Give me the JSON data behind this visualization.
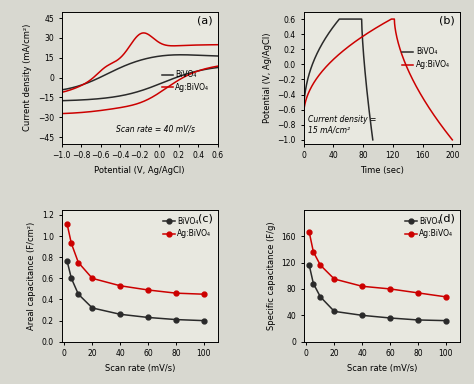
{
  "panel_a": {
    "title": "(a)",
    "xlabel": "Potential (V, Ag/AgCl)",
    "ylabel": "Current density (mA/cm²)",
    "annotation": "Scan rate = 40 mV/s",
    "xlim": [
      -1.0,
      0.6
    ],
    "ylim": [
      -50,
      50
    ],
    "yticks": [
      -45,
      -30,
      -15,
      0,
      15,
      30,
      45
    ],
    "xticks": [
      -1.0,
      -0.8,
      -0.6,
      -0.4,
      -0.2,
      0.0,
      0.2,
      0.4,
      0.6
    ],
    "bivo4_color": "#2a2a2a",
    "ag_bivo4_color": "#cc0000",
    "bg_color": "#e8e8e0"
  },
  "panel_b": {
    "title": "(b)",
    "xlabel": "Time (sec)",
    "ylabel": "Potential (V, Ag/AgCl)",
    "annotation": "Current density =\n15 mA/cm²",
    "xlim": [
      0,
      210
    ],
    "ylim": [
      -1.05,
      0.7
    ],
    "yticks": [
      -1.0,
      -0.8,
      -0.6,
      -0.4,
      -0.2,
      0.0,
      0.2,
      0.4,
      0.6
    ],
    "xticks": [
      0,
      40,
      80,
      120,
      160,
      200
    ],
    "bivo4_color": "#2a2a2a",
    "ag_bivo4_color": "#cc0000",
    "bg_color": "#e8e8e0"
  },
  "panel_c": {
    "title": "(c)",
    "xlabel": "Scan rate (mV/s)",
    "ylabel": "Areal capacitance (F/cm²)",
    "xlim": [
      -2,
      110
    ],
    "ylim": [
      0,
      1.25
    ],
    "yticks": [
      0.0,
      0.2,
      0.4,
      0.6,
      0.8,
      1.0,
      1.2
    ],
    "xticks": [
      0,
      20,
      40,
      60,
      80,
      100
    ],
    "bivo4_x": [
      2,
      5,
      10,
      20,
      40,
      60,
      80,
      100
    ],
    "bivo4_y": [
      0.76,
      0.6,
      0.45,
      0.32,
      0.26,
      0.23,
      0.21,
      0.2
    ],
    "ag_bivo4_x": [
      2,
      5,
      10,
      20,
      40,
      60,
      80,
      100
    ],
    "ag_bivo4_y": [
      1.11,
      0.93,
      0.75,
      0.6,
      0.53,
      0.49,
      0.46,
      0.45
    ],
    "bivo4_color": "#2a2a2a",
    "ag_bivo4_color": "#cc0000",
    "bg_color": "#e8e8e0"
  },
  "panel_d": {
    "title": "(d)",
    "xlabel": "Scan rate (mV/s)",
    "ylabel": "Specific capacitance (F/g)",
    "xlim": [
      -2,
      110
    ],
    "ylim": [
      0,
      200
    ],
    "yticks": [
      0,
      40,
      80,
      120,
      160
    ],
    "xticks": [
      0,
      20,
      40,
      60,
      80,
      100
    ],
    "bivo4_x": [
      2,
      5,
      10,
      20,
      40,
      60,
      80,
      100
    ],
    "bivo4_y": [
      116,
      88,
      68,
      46,
      40,
      36,
      33,
      32
    ],
    "ag_bivo4_x": [
      2,
      5,
      10,
      20,
      40,
      60,
      80,
      100
    ],
    "ag_bivo4_y": [
      166,
      136,
      116,
      95,
      84,
      80,
      74,
      68
    ],
    "bivo4_color": "#2a2a2a",
    "ag_bivo4_color": "#cc0000",
    "bg_color": "#e8e8e0"
  },
  "legend_bivo4": "BiVO₄",
  "legend_ag_bivo4": "Ag:BiVO₄",
  "fig_bg": "#d8d8d0"
}
